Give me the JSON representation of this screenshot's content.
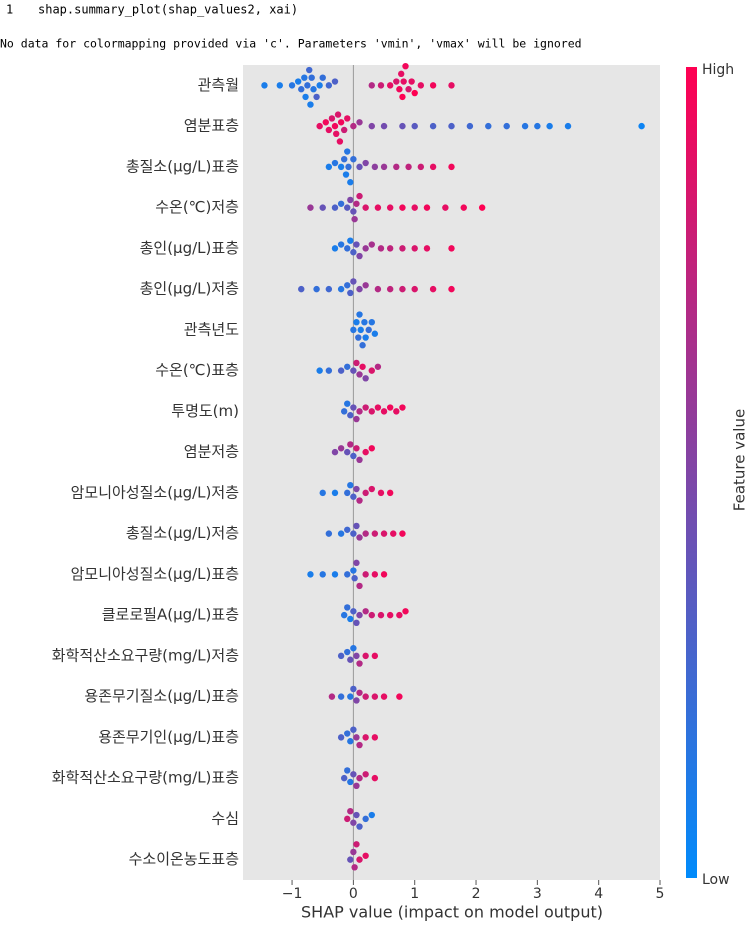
{
  "code": {
    "line_number": "1",
    "source": "shap.summary_plot(shap_values2, xai)"
  },
  "output": "No data for colormapping provided via 'c'. Parameters 'vmin', 'vmax' will be ignored",
  "chart_data": {
    "type": "beeswarm",
    "xlabel": "SHAP value (impact on model output)",
    "xlim": [
      -1.8,
      5.0
    ],
    "xticks": [
      {
        "value": -1,
        "label": "−1"
      },
      0,
      1,
      2,
      3,
      4,
      5
    ],
    "colormap": [
      "#008bfb",
      "#ff0052"
    ],
    "colorbar": {
      "label": "Feature value",
      "high": "High",
      "low": "Low"
    },
    "series": [
      {
        "name": "관측월",
        "values": [
          -1.45,
          -1.2,
          -1.0,
          -0.9,
          -0.85,
          -0.8,
          -0.78,
          -0.75,
          -0.72,
          -0.7,
          -0.68,
          -0.65,
          -0.6,
          -0.55,
          -0.5,
          -0.4,
          -0.3,
          0.3,
          0.45,
          0.6,
          0.7,
          0.75,
          0.78,
          0.8,
          0.82,
          0.85,
          0.9,
          0.95,
          1.0,
          1.1,
          1.3,
          1.6
        ],
        "feature_values": [
          0.1,
          0.1,
          0.15,
          0.1,
          0.2,
          0.15,
          0.1,
          0.2,
          0.25,
          0.1,
          0.2,
          0.15,
          0.3,
          0.1,
          0.2,
          0.25,
          0.3,
          0.7,
          0.8,
          0.9,
          0.85,
          0.95,
          0.9,
          1.0,
          0.9,
          0.95,
          0.85,
          0.9,
          1.0,
          0.9,
          0.95,
          0.9
        ]
      },
      {
        "name": "염분표층",
        "values": [
          -0.55,
          -0.45,
          -0.4,
          -0.35,
          -0.3,
          -0.28,
          -0.25,
          -0.22,
          -0.2,
          -0.15,
          -0.1,
          0.0,
          0.1,
          0.3,
          0.5,
          0.8,
          1.0,
          1.3,
          1.6,
          1.9,
          2.2,
          2.5,
          2.8,
          3.0,
          3.2,
          3.5,
          4.7
        ],
        "feature_values": [
          0.9,
          0.95,
          0.9,
          0.85,
          0.95,
          0.9,
          0.85,
          0.9,
          0.95,
          0.8,
          0.9,
          0.7,
          0.6,
          0.5,
          0.45,
          0.4,
          0.35,
          0.3,
          0.3,
          0.25,
          0.2,
          0.2,
          0.15,
          0.15,
          0.1,
          0.1,
          0.05
        ]
      },
      {
        "name": "총질소(μg/L)표층",
        "values": [
          -0.4,
          -0.3,
          -0.2,
          -0.15,
          -0.12,
          -0.1,
          -0.08,
          -0.05,
          0,
          0.1,
          0.2,
          0.35,
          0.5,
          0.7,
          0.9,
          1.1,
          1.3,
          1.6
        ],
        "feature_values": [
          0.1,
          0.15,
          0.1,
          0.2,
          0.1,
          0.15,
          0.2,
          0.1,
          0.2,
          0.4,
          0.5,
          0.55,
          0.6,
          0.7,
          0.75,
          0.8,
          0.9,
          0.95
        ]
      },
      {
        "name": "수온(℃)저층",
        "values": [
          -0.7,
          -0.5,
          -0.3,
          -0.2,
          -0.1,
          -0.05,
          0,
          0.02,
          0.05,
          0.1,
          0.2,
          0.4,
          0.6,
          0.8,
          1.0,
          1.2,
          1.5,
          1.8,
          2.1
        ],
        "feature_values": [
          0.6,
          0.4,
          0.3,
          0.2,
          0.35,
          0.5,
          0.4,
          0.6,
          0.7,
          0.8,
          0.85,
          0.9,
          0.9,
          0.95,
          0.9,
          0.95,
          0.9,
          0.95,
          1.0
        ]
      },
      {
        "name": "총인(μg/L)표층",
        "values": [
          -0.3,
          -0.2,
          -0.1,
          -0.05,
          0,
          0.05,
          0.1,
          0.2,
          0.3,
          0.45,
          0.6,
          0.8,
          1.0,
          1.2,
          1.6
        ],
        "feature_values": [
          0.1,
          0.15,
          0.2,
          0.1,
          0.3,
          0.4,
          0.5,
          0.6,
          0.65,
          0.7,
          0.75,
          0.8,
          0.85,
          0.9,
          0.95
        ]
      },
      {
        "name": "총인(μg/L)저층",
        "values": [
          -0.85,
          -0.6,
          -0.4,
          -0.2,
          -0.1,
          -0.05,
          0,
          0.1,
          0.2,
          0.4,
          0.6,
          0.8,
          1.0,
          1.3,
          1.6
        ],
        "feature_values": [
          0.3,
          0.2,
          0.25,
          0.15,
          0.2,
          0.3,
          0.4,
          0.5,
          0.6,
          0.7,
          0.75,
          0.8,
          0.85,
          0.9,
          0.95
        ]
      },
      {
        "name": "관측년도",
        "values": [
          0,
          0.05,
          0.08,
          0.1,
          0.12,
          0.15,
          0.18,
          0.2,
          0.25,
          0.3,
          0.35
        ],
        "feature_values": [
          0.15,
          0.1,
          0.2,
          0.15,
          0.1,
          0.2,
          0.15,
          0.1,
          0.2,
          0.15,
          0.1
        ]
      },
      {
        "name": "수온(℃)표층",
        "values": [
          -0.55,
          -0.4,
          -0.2,
          -0.1,
          0,
          0.05,
          0.1,
          0.15,
          0.2,
          0.3,
          0.4
        ],
        "feature_values": [
          0.1,
          0.2,
          0.3,
          0.2,
          0.4,
          0.8,
          0.6,
          0.9,
          0.5,
          0.85,
          0.7
        ]
      },
      {
        "name": "투명도(m)",
        "values": [
          -0.15,
          -0.1,
          -0.05,
          0,
          0.05,
          0.1,
          0.2,
          0.3,
          0.4,
          0.5,
          0.6,
          0.7,
          0.8
        ],
        "feature_values": [
          0.2,
          0.15,
          0.3,
          0.4,
          0.6,
          0.7,
          0.8,
          0.85,
          0.9,
          0.9,
          0.95,
          0.9,
          0.95
        ]
      },
      {
        "name": "염분저층",
        "values": [
          -0.3,
          -0.2,
          -0.1,
          -0.05,
          0,
          0.05,
          0.1,
          0.2,
          0.3
        ],
        "feature_values": [
          0.5,
          0.6,
          0.4,
          0.7,
          0.3,
          0.8,
          0.6,
          0.9,
          0.95
        ]
      },
      {
        "name": "암모니아성질소(μg/L)저층",
        "values": [
          -0.5,
          -0.3,
          -0.1,
          -0.05,
          0,
          0.05,
          0.1,
          0.2,
          0.3,
          0.45,
          0.6
        ],
        "feature_values": [
          0.15,
          0.1,
          0.2,
          0.15,
          0.3,
          0.5,
          0.7,
          0.8,
          0.85,
          0.9,
          0.95
        ]
      },
      {
        "name": "총질소(μg/L)저층",
        "values": [
          -0.4,
          -0.2,
          -0.1,
          0,
          0.05,
          0.1,
          0.2,
          0.35,
          0.5,
          0.65,
          0.8
        ],
        "feature_values": [
          0.2,
          0.15,
          0.25,
          0.3,
          0.4,
          0.6,
          0.7,
          0.8,
          0.85,
          0.9,
          0.95
        ]
      },
      {
        "name": "암모니아성질소(μg/L)표층",
        "values": [
          -0.7,
          -0.5,
          -0.3,
          -0.1,
          0,
          0.02,
          0.05,
          0.1,
          0.2,
          0.35,
          0.5
        ],
        "feature_values": [
          0.1,
          0.15,
          0.1,
          0.2,
          0.15,
          0.3,
          0.5,
          0.7,
          0.8,
          0.9,
          0.95
        ]
      },
      {
        "name": "클로로필A(μg/L)표층",
        "values": [
          -0.15,
          -0.1,
          -0.05,
          0,
          0.05,
          0.1,
          0.2,
          0.3,
          0.45,
          0.6,
          0.75,
          0.85
        ],
        "feature_values": [
          0.15,
          0.2,
          0.1,
          0.3,
          0.4,
          0.5,
          0.7,
          0.8,
          0.85,
          0.9,
          0.9,
          0.95
        ]
      },
      {
        "name": "화학적산소요구량(mg/L)저층",
        "values": [
          -0.2,
          -0.1,
          -0.05,
          0,
          0.05,
          0.1,
          0.2,
          0.35
        ],
        "feature_values": [
          0.3,
          0.2,
          0.4,
          0.15,
          0.5,
          0.7,
          0.85,
          0.9
        ]
      },
      {
        "name": "용존무기질소(μg/L)표층",
        "values": [
          -0.35,
          -0.2,
          -0.05,
          0,
          0.05,
          0.1,
          0.2,
          0.35,
          0.5,
          0.75
        ],
        "feature_values": [
          0.7,
          0.2,
          0.15,
          0.3,
          0.5,
          0.7,
          0.8,
          0.85,
          0.9,
          0.95
        ]
      },
      {
        "name": "용존무기인(μg/L)표층",
        "values": [
          -0.2,
          -0.1,
          -0.05,
          0,
          0.05,
          0.1,
          0.2,
          0.35
        ],
        "feature_values": [
          0.3,
          0.2,
          0.15,
          0.3,
          0.6,
          0.7,
          0.85,
          0.9
        ]
      },
      {
        "name": "화학적산소요구량(mg/L)표층",
        "values": [
          -0.15,
          -0.1,
          -0.05,
          0,
          0.05,
          0.1,
          0.2,
          0.35
        ],
        "feature_values": [
          0.3,
          0.2,
          0.15,
          0.4,
          0.6,
          0.7,
          0.8,
          0.9
        ]
      },
      {
        "name": "수심",
        "values": [
          -0.1,
          -0.05,
          0,
          0.05,
          0.1,
          0.2,
          0.3
        ],
        "feature_values": [
          0.8,
          0.7,
          0.5,
          0.4,
          0.3,
          0.2,
          0.1
        ]
      },
      {
        "name": "수소이온농도표층",
        "values": [
          -0.05,
          0,
          0.02,
          0.05,
          0.1,
          0.2
        ],
        "feature_values": [
          0.4,
          0.6,
          0.7,
          0.8,
          0.85,
          0.9
        ]
      }
    ]
  }
}
